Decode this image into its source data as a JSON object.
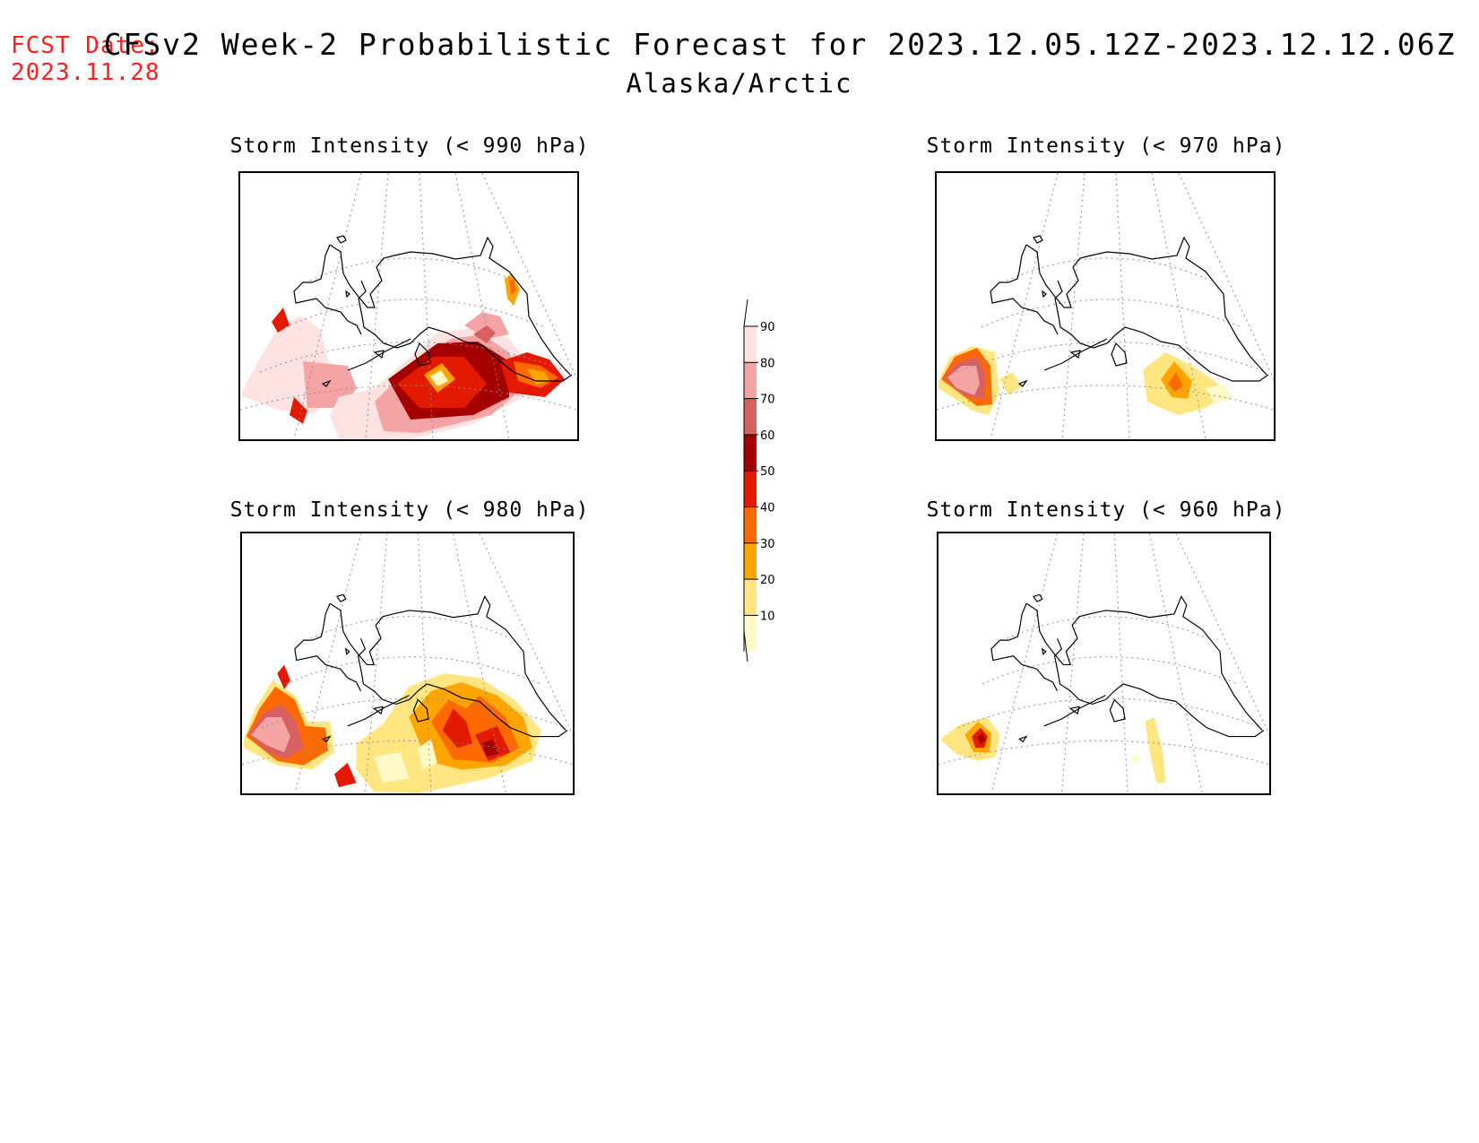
{
  "header": {
    "fcst_label": "FCST Date:",
    "fcst_date": "2023.11.28",
    "title": "CFSv2 Week-2 Probabilistic Forecast for 2023.12.05.12Z-2023.12.12.06Z",
    "subtitle": "Alaska/Arctic"
  },
  "panels": [
    {
      "id": "p990",
      "title": "Storm Intensity (< 990 hPa)"
    },
    {
      "id": "p970",
      "title": "Storm Intensity (< 970 hPa)"
    },
    {
      "id": "p980",
      "title": "Storm Intensity (< 980 hPa)"
    },
    {
      "id": "p960",
      "title": "Storm Intensity (< 960 hPa)"
    }
  ],
  "colorbar": {
    "levels": [
      "10",
      "20",
      "30",
      "40",
      "50",
      "60",
      "70",
      "80",
      "90"
    ],
    "colors": [
      "#fffac8",
      "#ffe680",
      "#ffa500",
      "#ff6a00",
      "#e41a00",
      "#a50000",
      "#d86060",
      "#f4a4a4",
      "#fde2e2"
    ]
  }
}
